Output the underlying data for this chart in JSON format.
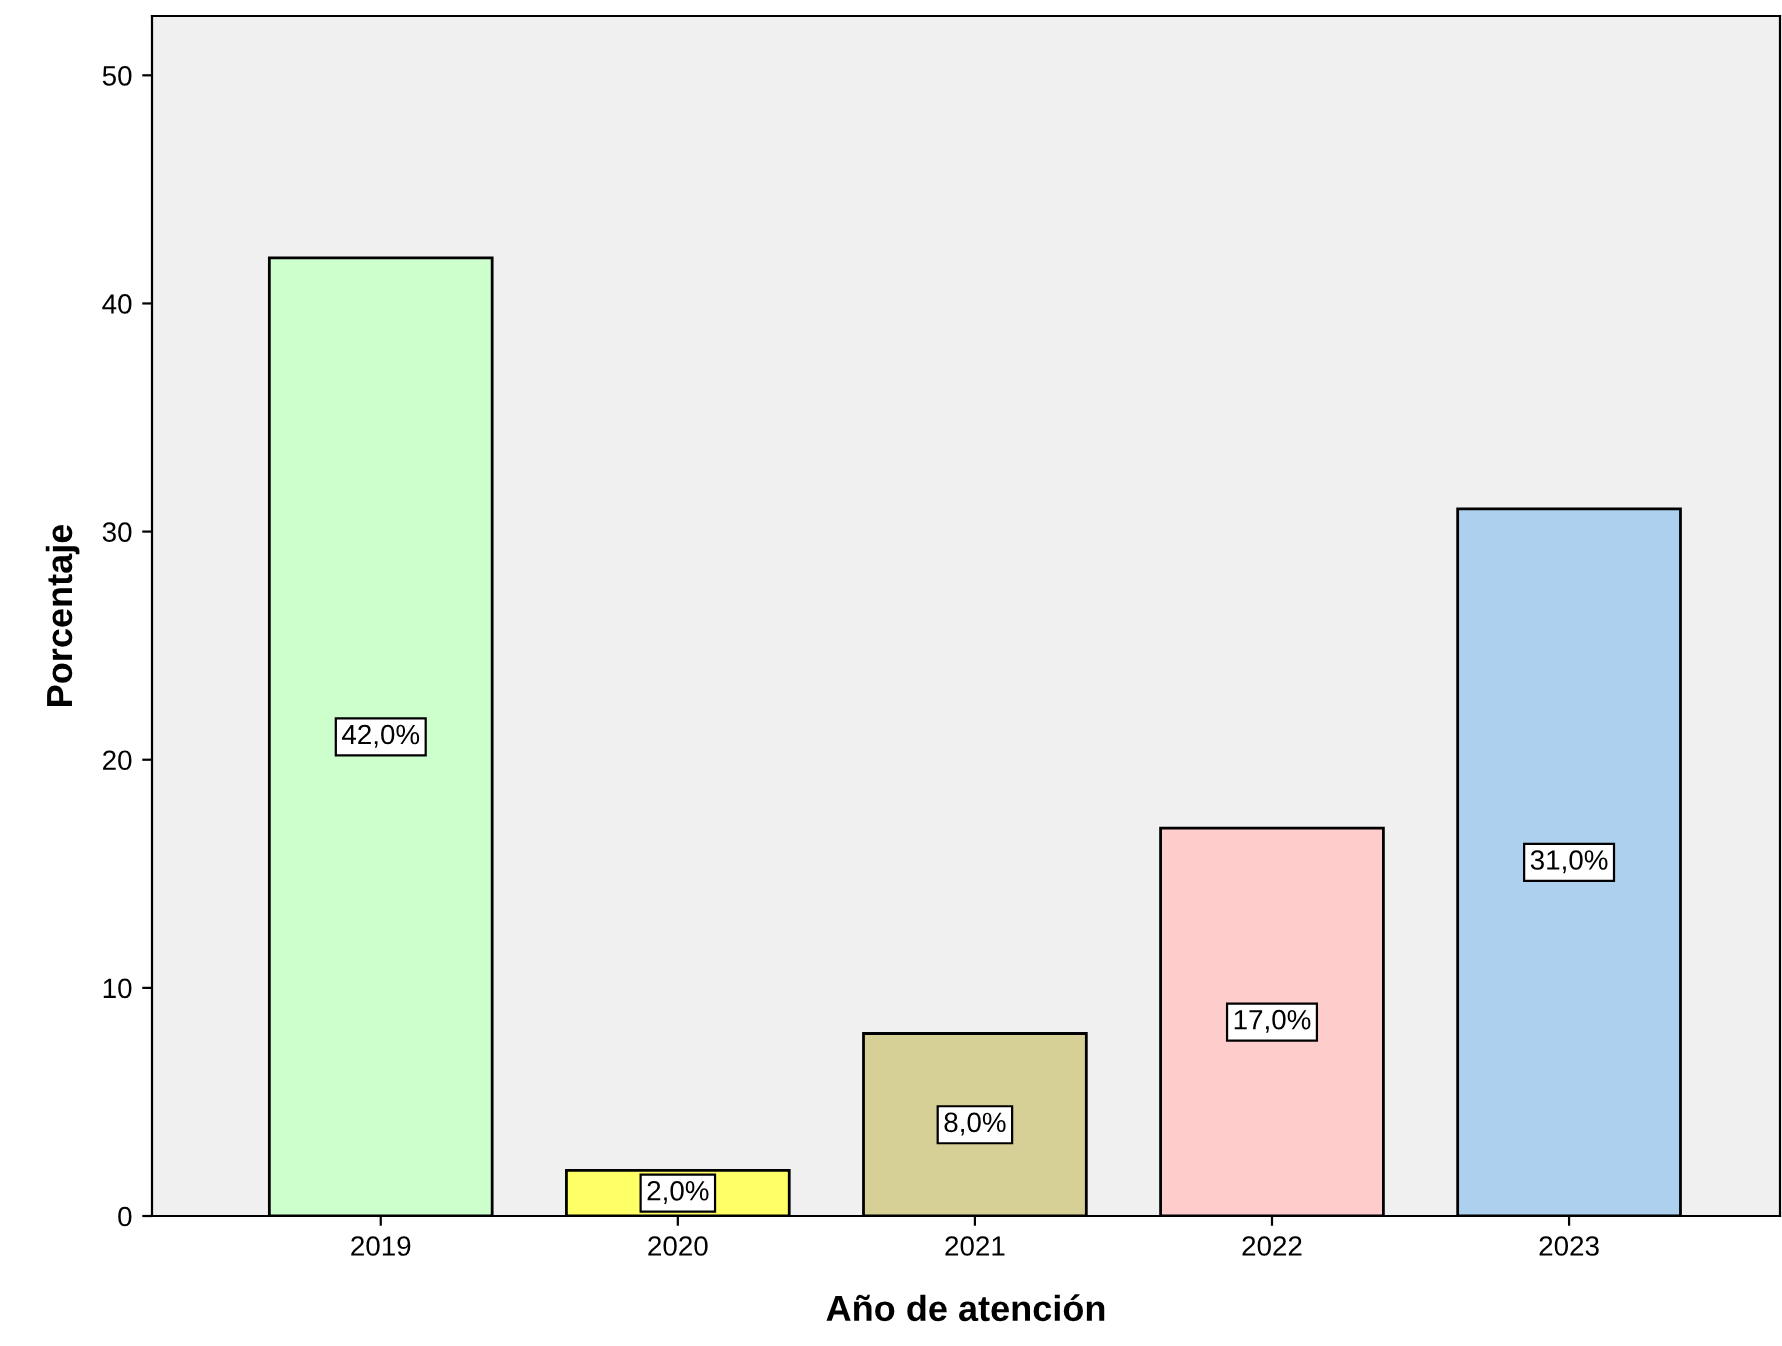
{
  "chart_data": {
    "type": "bar",
    "xlabel": "Año de atención",
    "ylabel": "Porcentaje",
    "categories": [
      "2019",
      "2020",
      "2021",
      "2022",
      "2023"
    ],
    "values": [
      42,
      2,
      8,
      17,
      31
    ],
    "colors": [
      "#ccffcc",
      "#ffff66",
      "#d6cf96",
      "#ffcccc",
      "#acd0ee"
    ],
    "value_labels": [
      "42,0%",
      "2,0%",
      "8,0%",
      "17,0%",
      "31,0%"
    ],
    "ylim": [
      0,
      52.6
    ],
    "yticks": [
      0,
      10,
      20,
      30,
      40,
      50
    ],
    "grid": false,
    "legend": false
  }
}
